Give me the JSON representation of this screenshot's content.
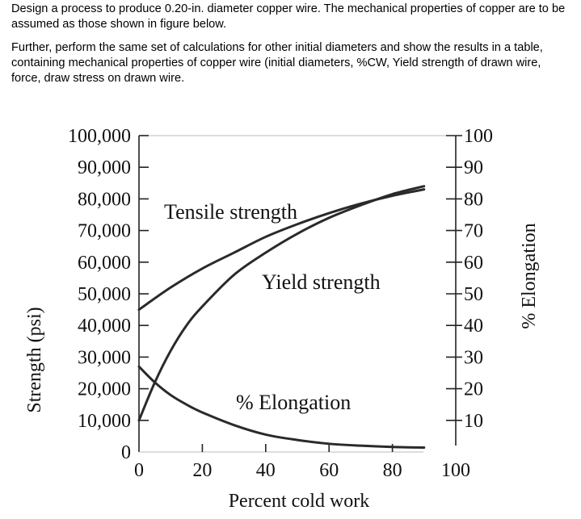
{
  "problem": {
    "paragraph1": "Design a process to produce 0.20-in. diameter copper wire. The mechanical properties of copper are to be assumed as those shown in figure below.",
    "paragraph2": "Further, perform the same set of calculations for other initial diameters and show the results in a table, containing mechanical properties of copper wire (initial diameters, %CW, Yield strength of drawn wire, force, draw stress on drawn wire."
  },
  "chart_data": {
    "type": "line",
    "xlabel": "Percent cold work",
    "ylabel_left": "Strength (psi)",
    "ylabel_right": "% Elongation",
    "x_ticks": [
      "0",
      "20",
      "40",
      "60",
      "80",
      "100"
    ],
    "y_left_ticks": [
      "0",
      "10,000",
      "20,000",
      "30,000",
      "40,000",
      "50,000",
      "60,000",
      "70,000",
      "80,000",
      "90,000",
      "100,000"
    ],
    "y_right_ticks": [
      "10",
      "20",
      "30",
      "40",
      "50",
      "60",
      "70",
      "80",
      "90",
      "100"
    ],
    "xlim": [
      0,
      100
    ],
    "ylim_left": [
      0,
      100000
    ],
    "ylim_right": [
      0,
      100
    ],
    "annotations": {
      "tensile": "Tensile strength",
      "yield": "Yield strength",
      "elongation": "% Elongation"
    },
    "series": [
      {
        "key": "tensile",
        "axis": "left",
        "x": [
          0,
          10,
          20,
          30,
          40,
          50,
          60,
          70,
          80,
          90
        ],
        "values": [
          45000,
          52000,
          58000,
          63000,
          68000,
          72000,
          75500,
          78500,
          81000,
          83000
        ]
      },
      {
        "key": "yield",
        "axis": "left",
        "x": [
          0,
          5,
          10,
          15,
          20,
          30,
          40,
          50,
          60,
          70,
          80,
          90
        ],
        "values": [
          10000,
          22000,
          32000,
          40000,
          46000,
          56000,
          63000,
          69000,
          74000,
          78000,
          81500,
          84000
        ]
      },
      {
        "key": "elongation",
        "axis": "right",
        "x": [
          0,
          5,
          10,
          15,
          20,
          30,
          40,
          50,
          60,
          70,
          80,
          90
        ],
        "values": [
          27,
          22,
          18,
          15,
          12.5,
          8.5,
          5.5,
          3.8,
          2.6,
          2,
          1.6,
          1.4
        ]
      }
    ]
  }
}
